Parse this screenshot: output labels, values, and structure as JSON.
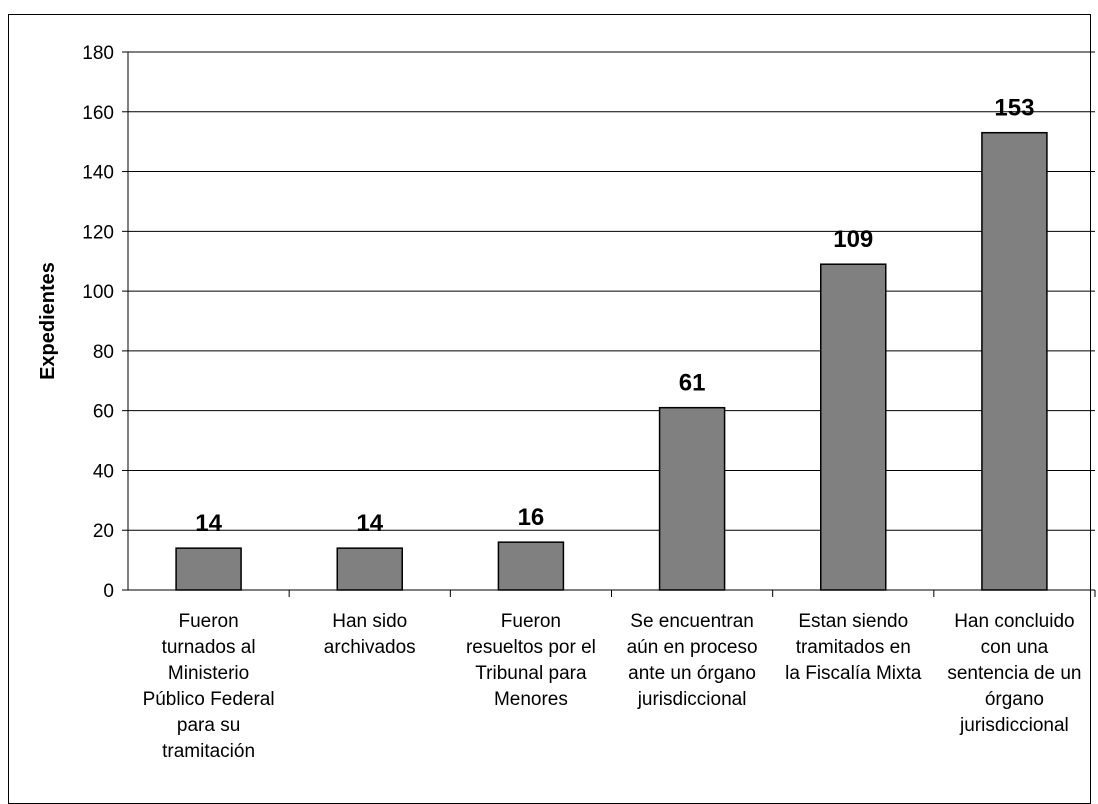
{
  "chart_data": {
    "type": "bar",
    "categories": [
      "Fueron\nturnados al\nMinisterio\nPúblico Federal\npara su\ntramitación",
      "Han sido\narchivados",
      "Fueron\nresueltos por el\nTribunal para\nMenores",
      "Se encuentran\naún en proceso\nante un órgano\njurisdiccional",
      "Estan siendo\ntramitados en\nla Fiscalía Mixta",
      "Han concluido\ncon una\nsentencia de un\nórgano\njurisdiccional"
    ],
    "values": [
      14,
      14,
      16,
      61,
      109,
      153
    ],
    "ylabel": "Expedientes",
    "ylim": [
      0,
      180
    ],
    "yticks": [
      0,
      20,
      40,
      60,
      80,
      100,
      120,
      140,
      160,
      180
    ],
    "grid": true,
    "colors": {
      "bar": "#808080",
      "bar_stroke": "#000000",
      "grid": "#000000"
    }
  }
}
